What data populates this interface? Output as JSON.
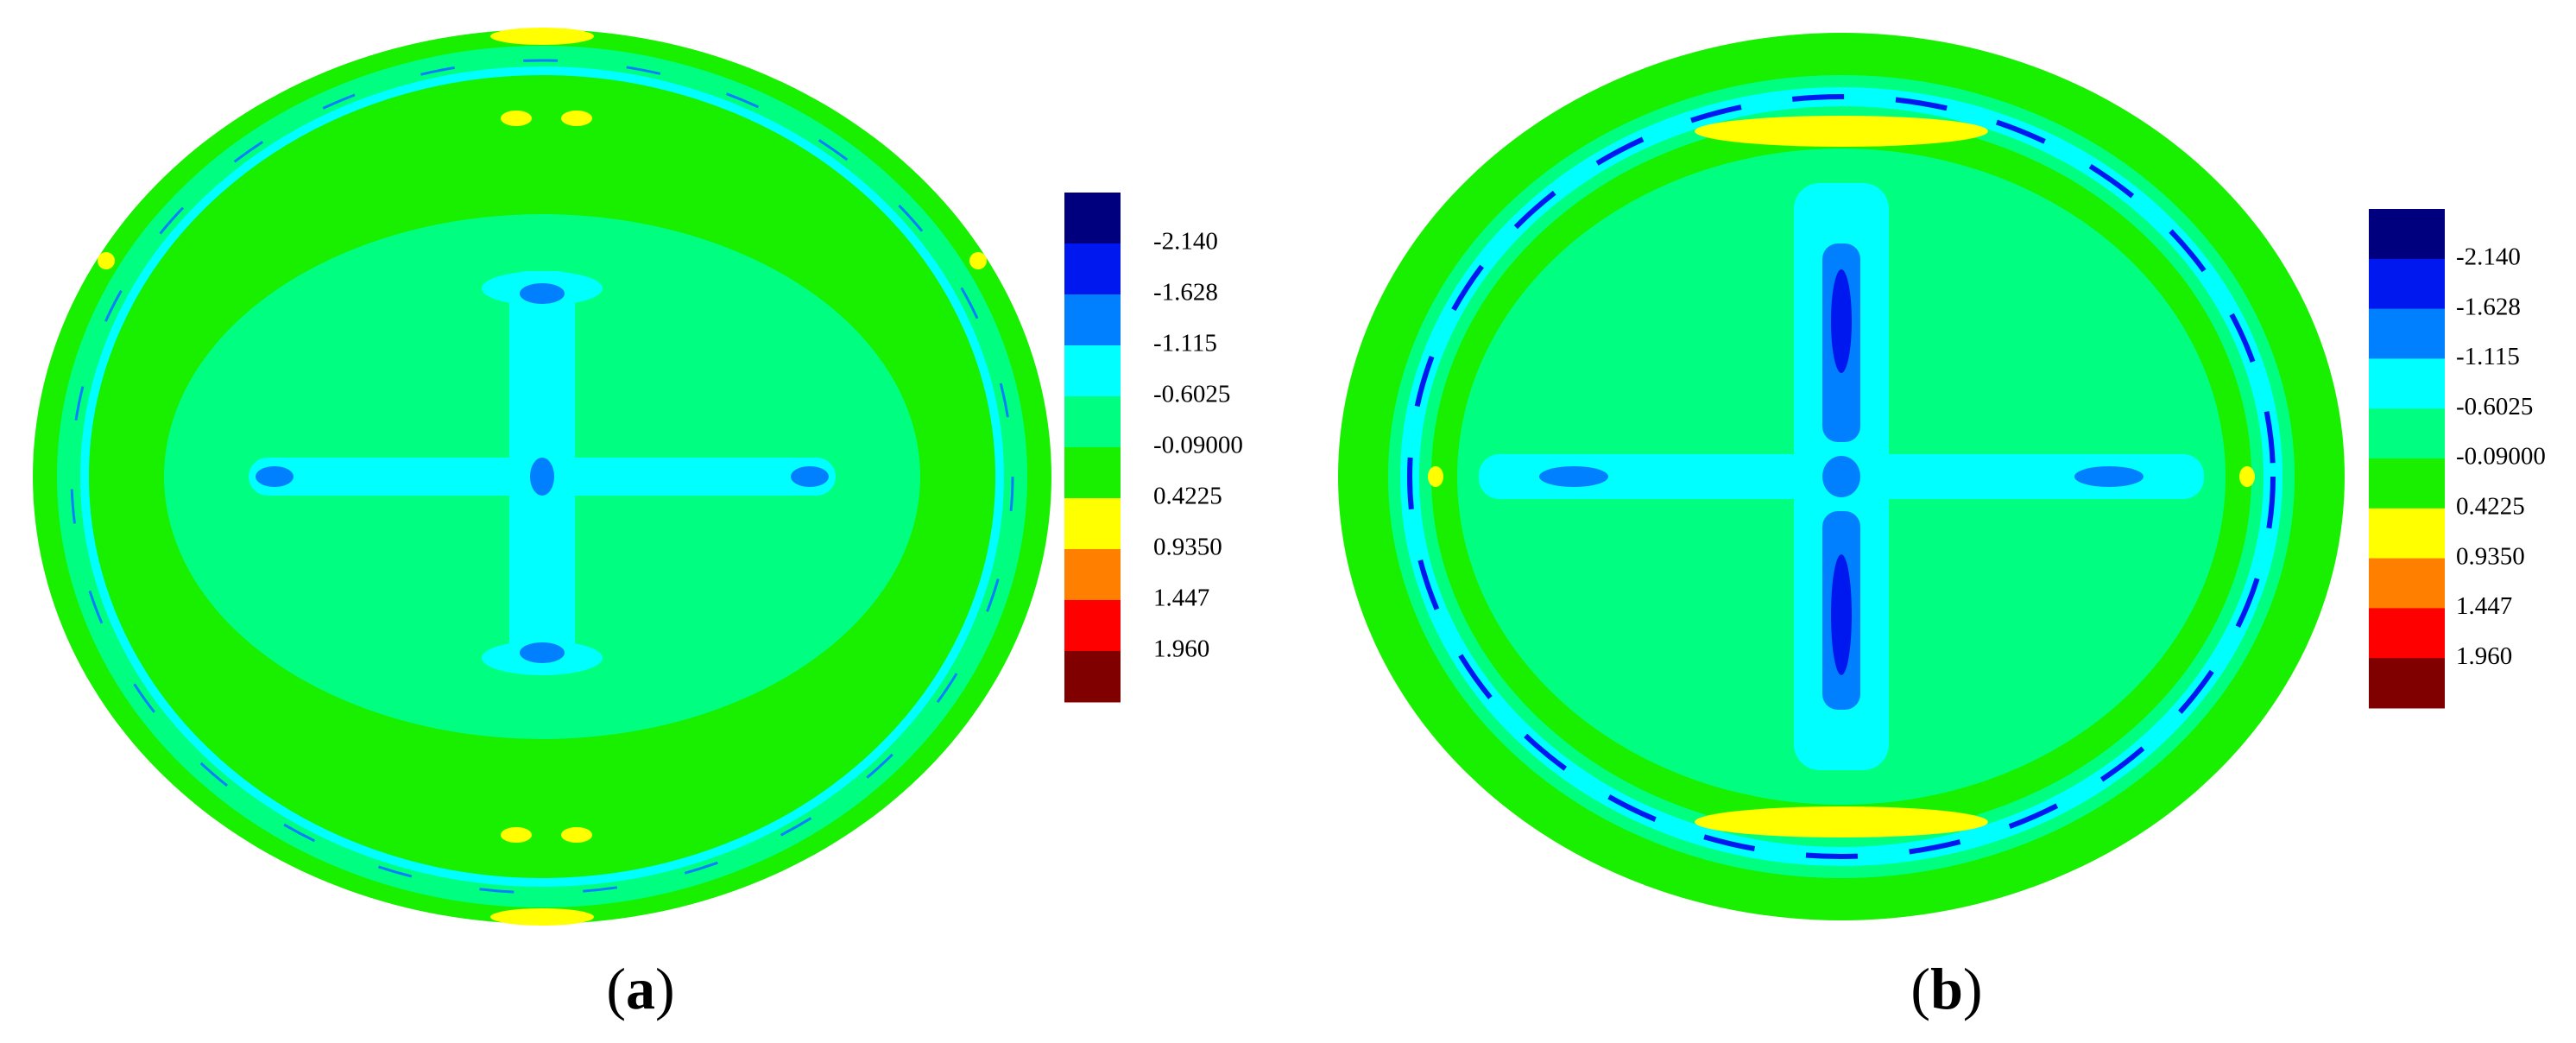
{
  "panels": [
    {
      "caption": [
        "(",
        "a",
        ")"
      ],
      "colorbar": {
        "labels": [
          "-2.140",
          "-1.628",
          "-1.115",
          "-0.6025",
          "-0.09000",
          "0.4225",
          "0.9350",
          "1.447",
          "1.960"
        ],
        "colors": [
          "#00007f",
          "#0018f0",
          "#0080ff",
          "#00ffff",
          "#00ff80",
          "#18f000",
          "#ffff00",
          "#ff8000",
          "#ff0000",
          "#800000"
        ]
      }
    },
    {
      "caption": [
        "(",
        "b",
        ")"
      ],
      "colorbar": {
        "labels": [
          "-2.140",
          "-1.628",
          "-1.115",
          "-0.6025",
          "-0.09000",
          "0.4225",
          "0.9350",
          "1.447",
          "1.960"
        ],
        "colors": [
          "#00007f",
          "#0018f0",
          "#0080ff",
          "#00ffff",
          "#00ff80",
          "#18f000",
          "#ffff00",
          "#ff8000",
          "#ff0000",
          "#800000"
        ]
      }
    }
  ]
}
